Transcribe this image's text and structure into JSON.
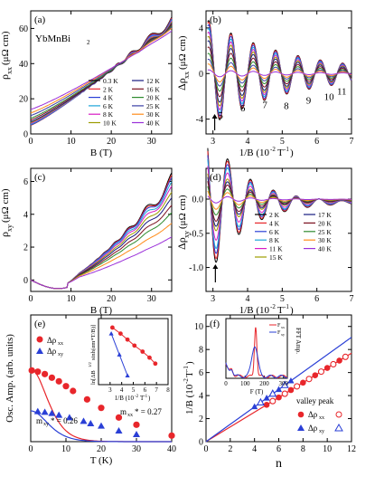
{
  "chart_data": [
    {
      "panel": "(a)",
      "type": "line",
      "material": "YbMnBi",
      "material_subscript": "2",
      "xlabel": "B (T)",
      "ylabel": "ρxx (μΩ cm)",
      "xlim": [
        0,
        35
      ],
      "ylim": [
        0,
        70
      ],
      "xticks": [
        0,
        10,
        20,
        30
      ],
      "yticks": [
        0,
        20,
        40,
        60
      ],
      "legend_placement": "lower-right",
      "series": [
        {
          "name": "0.3 K",
          "color": "#000000",
          "start": 5,
          "end": 65,
          "osc": 2.2
        },
        {
          "name": "2 K",
          "color": "#e8262b",
          "start": 5,
          "end": 64.5,
          "osc": 2.2
        },
        {
          "name": "4 K",
          "color": "#2a3fd6",
          "start": 5.2,
          "end": 64,
          "osc": 2.1
        },
        {
          "name": "6 K",
          "color": "#1ca5d9",
          "start": 5.5,
          "end": 63.5,
          "osc": 1.9
        },
        {
          "name": "8 K",
          "color": "#d81bc4",
          "start": 6,
          "end": 63,
          "osc": 1.8
        },
        {
          "name": "10 K",
          "color": "#9c9c00",
          "start": 6.5,
          "end": 62.5,
          "osc": 1.6
        },
        {
          "name": "12 K",
          "color": "#161a80",
          "start": 7,
          "end": 62,
          "osc": 1.4
        },
        {
          "name": "16 K",
          "color": "#7a0f1e",
          "start": 8,
          "end": 61.5,
          "osc": 1.1
        },
        {
          "name": "20 K",
          "color": "#2e8b2e",
          "start": 9,
          "end": 61,
          "osc": 0.8
        },
        {
          "name": "25 K",
          "color": "#3a3fa6",
          "start": 10.5,
          "end": 60.5,
          "osc": 0.5
        },
        {
          "name": "30 K",
          "color": "#ff8c1a",
          "start": 12,
          "end": 60,
          "osc": 0.3
        },
        {
          "name": "40 K",
          "color": "#9b30d9",
          "start": 14,
          "end": 58.5,
          "osc": 0.1
        }
      ]
    },
    {
      "panel": "(b)",
      "type": "line",
      "xlabel": "1/B (10⁻²T⁻¹)",
      "ylabel": "Δρxx (μΩ cm)",
      "xlim": [
        2.8,
        7
      ],
      "ylim": [
        -5.3,
        5.5
      ],
      "xticks": [
        3,
        4,
        5,
        6,
        7
      ],
      "yticks": [
        -4,
        0,
        4
      ],
      "oscillation_frequency_T": 155,
      "landau_levels": [
        {
          "label": "5",
          "x": 3.22,
          "y": -2.9
        },
        {
          "label": "6",
          "x": 3.86,
          "y": -2.3
        },
        {
          "label": "7",
          "x": 4.5,
          "y": -2.0
        },
        {
          "label": "8",
          "x": 5.12,
          "y": -2.1
        },
        {
          "label": "9",
          "x": 5.76,
          "y": -1.6
        },
        {
          "label": "10",
          "x": 6.35,
          "y": -1.3
        },
        {
          "label": "11",
          "x": 6.72,
          "y": -0.8
        }
      ],
      "arrow_at_x": 3.05,
      "series_amplitude_scale": [
        1.0,
        0.97,
        0.92,
        0.85,
        0.78,
        0.7,
        0.62,
        0.5,
        0.38,
        0.27,
        0.18,
        0.07
      ]
    },
    {
      "panel": "(c)",
      "type": "line",
      "xlabel": "B (T)",
      "ylabel": "ρxy (μΩ cm)",
      "xlim": [
        0,
        35
      ],
      "ylim": [
        -0.7,
        6.8
      ],
      "xticks": [
        0,
        10,
        20,
        30
      ],
      "yticks": [
        0,
        2,
        4,
        6
      ],
      "series": [
        {
          "name": "2 K",
          "color": "#000000",
          "end": 6.0,
          "osc": 0.55
        },
        {
          "name": "4 K",
          "color": "#e8262b",
          "end": 5.9,
          "osc": 0.5
        },
        {
          "name": "6 K",
          "color": "#2a3fd6",
          "end": 5.8,
          "osc": 0.45
        },
        {
          "name": "8 K",
          "color": "#1ca5d9",
          "end": 5.6,
          "osc": 0.4
        },
        {
          "name": "11 K",
          "color": "#d81bc4",
          "end": 5.4,
          "osc": 0.32
        },
        {
          "name": "15 K",
          "color": "#9c9c00",
          "end": 5.1,
          "osc": 0.25
        },
        {
          "name": "17 K",
          "color": "#161a80",
          "end": 4.8,
          "osc": 0.2
        },
        {
          "name": "20 K",
          "color": "#7a0f1e",
          "end": 4.4,
          "osc": 0.15
        },
        {
          "name": "25 K",
          "color": "#2e8b2e",
          "end": 4.0,
          "osc": 0.1
        },
        {
          "name": "30 K",
          "color": "#ff8c1a",
          "end": 3.4,
          "osc": 0.05
        },
        {
          "name": "40 K",
          "color": "#9b30d9",
          "end": 2.6,
          "osc": 0.02
        }
      ]
    },
    {
      "panel": "(d)",
      "type": "line",
      "xlabel": "1/B (10⁻²T⁻¹)",
      "ylabel": "Δρxy (μΩ cm)",
      "xlim": [
        2.8,
        7
      ],
      "ylim": [
        -1.35,
        0.45
      ],
      "xticks": [
        3,
        4,
        5,
        6,
        7
      ],
      "yticks": [
        -1.0,
        -0.5,
        0.0
      ],
      "arrow_at_x": 3.07,
      "legend_placement": "lower-right",
      "series": [
        {
          "name": "2 K",
          "color": "#000000",
          "amp": 1.0
        },
        {
          "name": "4 K",
          "color": "#e8262b",
          "amp": 0.94
        },
        {
          "name": "6 K",
          "color": "#2a3fd6",
          "amp": 0.86
        },
        {
          "name": "8 K",
          "color": "#1ca5d9",
          "amp": 0.78
        },
        {
          "name": "11 K",
          "color": "#d81bc4",
          "amp": 0.65
        },
        {
          "name": "15 K",
          "color": "#9c9c00",
          "amp": 0.5
        },
        {
          "name": "17 K",
          "color": "#161a80",
          "amp": 0.43
        },
        {
          "name": "20 K",
          "color": "#7a0f1e",
          "amp": 0.35
        },
        {
          "name": "25 K",
          "color": "#2e8b2e",
          "amp": 0.25
        },
        {
          "name": "30 K",
          "color": "#ff8c1a",
          "amp": 0.16
        },
        {
          "name": "40 K",
          "color": "#9b30d9",
          "amp": 0.06
        }
      ]
    },
    {
      "panel": "(e)",
      "type": "scatter",
      "xlabel": "T (K)",
      "ylabel": "Osc. Amp. (arb. units)",
      "xlim": [
        0,
        40
      ],
      "ylim": [
        0,
        10.5
      ],
      "xticks": [
        0,
        10,
        20,
        30,
        40
      ],
      "series": [
        {
          "name": "Δρxx",
          "color": "#e8262b",
          "marker": "circle",
          "x": [
            0.3,
            2,
            4,
            6,
            8,
            10,
            12,
            16,
            20,
            25,
            30,
            40
          ],
          "y": [
            5.9,
            5.8,
            5.6,
            5.3,
            5.0,
            4.6,
            4.2,
            3.5,
            2.8,
            2.0,
            1.4,
            0.5
          ]
        },
        {
          "name": "Δρxy",
          "color": "#2a3fd6",
          "marker": "triangle",
          "x": [
            2,
            4,
            6,
            8,
            11,
            15,
            17,
            20,
            25,
            30
          ],
          "y": [
            2.5,
            2.45,
            2.35,
            2.2,
            2.0,
            1.7,
            1.5,
            1.3,
            0.9,
            0.6
          ]
        }
      ],
      "annotations": [
        {
          "text": "m*xx = 0.27",
          "label": "mxx* = 0.27"
        },
        {
          "text": "mxy* = 0.26",
          "label": "mxy* = 0.26"
        }
      ],
      "inset": {
        "xlabel": "1/B (10⁻²T⁻¹)",
        "ylabel": "ln[ΔB^(1/2)sinh(αm*T/B)]",
        "xlim": [
          2,
          8
        ],
        "xticks": [
          3,
          4,
          5,
          6,
          7,
          8
        ],
        "series": [
          {
            "name": "Δρxx",
            "color": "#e8262b",
            "x": [
              3.2,
              3.9,
              4.5,
              5.1,
              5.8,
              6.4,
              6.9
            ],
            "y": [
              9.6,
              9.2,
              8.8,
              8.4,
              8.0,
              7.6,
              7.2
            ]
          },
          {
            "name": "Δρxy",
            "color": "#2a3fd6",
            "x": [
              3.1,
              3.8,
              4.5
            ],
            "y": [
              9.2,
              7.8,
              6.4
            ]
          }
        ]
      }
    },
    {
      "panel": "(f)",
      "type": "scatter",
      "xlabel": "n",
      "ylabel": "1/B (10⁻²T⁻¹)",
      "xlim": [
        0,
        12
      ],
      "ylim": [
        0,
        11
      ],
      "xticks": [
        0,
        2,
        4,
        6,
        8,
        10,
        12
      ],
      "yticks": [
        0,
        2,
        4,
        6,
        8,
        10
      ],
      "legend_title": "valley peak",
      "series": [
        {
          "name": "Δρxx",
          "color": "#e8262b",
          "marker": "circle",
          "valley_n": [
            5,
            6,
            7,
            8,
            9,
            10,
            11
          ],
          "valley_y": [
            3.2,
            3.84,
            4.48,
            5.12,
            5.76,
            6.4,
            7.04
          ],
          "peak_n": [
            5.5,
            6.5,
            7.5,
            8.5,
            9.5,
            10.5,
            11.5
          ],
          "peak_y": [
            3.52,
            4.16,
            4.8,
            5.44,
            6.08,
            6.72,
            7.36
          ],
          "fit_slope": 0.64
        },
        {
          "name": "Δρxy",
          "color": "#2a3fd6",
          "marker": "triangle",
          "valley_n": [
            4,
            5,
            6,
            7
          ],
          "valley_y": [
            3.05,
            3.8,
            4.55,
            5.3
          ],
          "peak_n": [
            4.5,
            5.5,
            6.5
          ],
          "peak_y": [
            3.42,
            4.18,
            4.93
          ],
          "fit_slope": 0.755
        }
      ],
      "inset": {
        "xlabel": "F (T)",
        "ylabel": "FFT Amp.",
        "xlim": [
          0,
          320
        ],
        "xticks": [
          0,
          100,
          200,
          300
        ],
        "series": [
          {
            "name": "Fxx",
            "color": "#e8262b",
            "peak_F": 155
          },
          {
            "name": "Fxy",
            "color": "#2a3fd6",
            "peak_F": 150
          }
        ]
      }
    }
  ]
}
